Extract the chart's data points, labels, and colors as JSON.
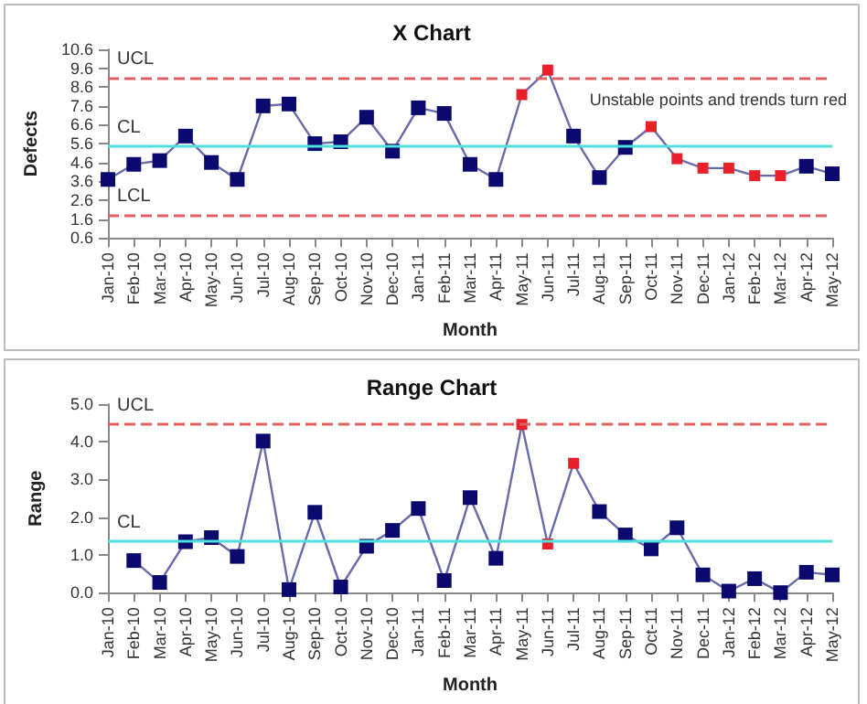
{
  "chart_data": [
    {
      "type": "line",
      "title": "X Chart",
      "xlabel": "Month",
      "ylabel": "Defects",
      "categories": [
        "Jan-10",
        "Feb-10",
        "Mar-10",
        "Apr-10",
        "May-10",
        "Jun-10",
        "Jul-10",
        "Aug-10",
        "Sep-10",
        "Oct-10",
        "Nov-10",
        "Dec-10",
        "Jan-11",
        "Feb-11",
        "Mar-11",
        "Apr-11",
        "May-11",
        "Jun-11",
        "Jul-11",
        "Aug-11",
        "Sep-11",
        "Oct-11",
        "Nov-11",
        "Dec-11",
        "Jan-12",
        "Feb-12",
        "Mar-12",
        "Apr-12",
        "May-12"
      ],
      "series": [
        {
          "color": "#6a6aa8",
          "values": [
            3.7,
            4.5,
            4.7,
            6.0,
            4.6,
            3.7,
            7.6,
            7.7,
            5.6,
            5.7,
            7.0,
            5.2,
            7.5,
            7.2,
            4.5,
            3.7,
            8.2,
            9.5,
            6.0,
            3.8,
            5.4,
            6.5,
            4.8,
            4.3,
            4.3,
            3.9,
            3.9,
            4.4,
            4.0
          ],
          "colors": [
            "#0a0a6e",
            "#0a0a6e",
            "#0a0a6e",
            "#0a0a6e",
            "#0a0a6e",
            "#0a0a6e",
            "#0a0a6e",
            "#0a0a6e",
            "#0a0a6e",
            "#0a0a6e",
            "#0a0a6e",
            "#0a0a6e",
            "#0a0a6e",
            "#0a0a6e",
            "#0a0a6e",
            "#0a0a6e",
            "#e8202a",
            "#e8202a",
            "#0a0a6e",
            "#0a0a6e",
            "#0a0a6e",
            "#e8202a",
            "#e8202a",
            "#e8202a",
            "#e8202a",
            "#e8202a",
            "#e8202a",
            "#0a0a6e",
            "#0a0a6e"
          ]
        }
      ],
      "ylim": [
        0.6,
        10.6
      ],
      "yticks": [
        0.6,
        1.6,
        2.6,
        3.6,
        4.6,
        5.6,
        6.6,
        7.6,
        8.6,
        9.6,
        10.6
      ],
      "ref_lines": [
        {
          "axis": "y",
          "value": 9.09,
          "label": "UCL",
          "color": "#e06060",
          "line_style": "dashed"
        },
        {
          "axis": "y",
          "value": 5.46,
          "label": "CL",
          "color": "#50dede",
          "line_style": "solid"
        },
        {
          "axis": "y",
          "value": 1.83,
          "label": "LCL",
          "color": "#e06060",
          "line_style": "dashed"
        }
      ],
      "annotations": [
        "Unstable points and trends turn red"
      ],
      "grid": false,
      "marker": "square"
    },
    {
      "type": "line",
      "title": "Range Chart",
      "xlabel": "Month",
      "ylabel": "Range",
      "categories": [
        "Jan-10",
        "Feb-10",
        "Mar-10",
        "Apr-10",
        "May-10",
        "Jun-10",
        "Jul-10",
        "Aug-10",
        "Sep-10",
        "Oct-10",
        "Nov-10",
        "Dec-10",
        "Jan-11",
        "Feb-11",
        "Mar-11",
        "Apr-11",
        "May-11",
        "Jun-11",
        "Jul-11",
        "Aug-11",
        "Sep-11",
        "Oct-11",
        "Nov-11",
        "Dec-11",
        "Jan-12",
        "Feb-12",
        "Mar-12",
        "Apr-12",
        "May-12"
      ],
      "series": [
        {
          "color": "#6a6aa8",
          "values": [
            null,
            0.85,
            0.27,
            1.35,
            1.46,
            0.96,
            4.02,
            0.08,
            2.13,
            0.15,
            1.23,
            1.65,
            2.23,
            0.32,
            2.52,
            0.91,
            4.46,
            1.29,
            3.43,
            2.15,
            1.53,
            1.16,
            1.72,
            0.47,
            0.04,
            0.37,
            0.0,
            0.54,
            0.47
          ],
          "colors": [
            null,
            "#0a0a6e",
            "#0a0a6e",
            "#0a0a6e",
            "#0a0a6e",
            "#0a0a6e",
            "#0a0a6e",
            "#0a0a6e",
            "#0a0a6e",
            "#0a0a6e",
            "#0a0a6e",
            "#0a0a6e",
            "#0a0a6e",
            "#0a0a6e",
            "#0a0a6e",
            "#0a0a6e",
            "#e8202a",
            "#e8202a",
            "#e8202a",
            "#0a0a6e",
            "#0a0a6e",
            "#0a0a6e",
            "#0a0a6e",
            "#0a0a6e",
            "#0a0a6e",
            "#0a0a6e",
            "#0a0a6e",
            "#0a0a6e",
            "#0a0a6e"
          ]
        }
      ],
      "ylim": [
        0,
        5
      ],
      "yticks": [
        {
          "value": 0,
          "label": "0.0"
        },
        {
          "value": 1,
          "label": "1.0"
        },
        {
          "value": 2,
          "label": "2.0"
        },
        {
          "value": 3,
          "label": "3.0"
        },
        {
          "value": 4,
          "label": "4.0"
        },
        {
          "value": 5,
          "label": "5.0"
        }
      ],
      "ref_lines": [
        {
          "axis": "y",
          "value": 4.46,
          "label": "UCL",
          "color": "#e06060",
          "line_style": "dashed"
        },
        {
          "axis": "y",
          "value": 1.36,
          "label": "CL",
          "color": "#50dede",
          "line_style": "solid"
        }
      ],
      "grid": false,
      "marker": "square"
    }
  ]
}
